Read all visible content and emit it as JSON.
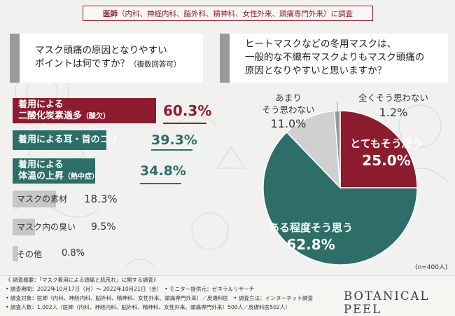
{
  "header": {
    "brand": "医師",
    "specialties": "（内科、神経内科、脳外科、精神科、女性外来、頭痛専門外来）",
    "suffix": "に調査"
  },
  "left_question": {
    "line1": "マスク頭痛の原因となりやすい",
    "line2": "ポイントは何ですか？",
    "note": "（複数回答可）"
  },
  "right_question": {
    "line1": "ヒートマスクなどの冬用マスクは、",
    "line2": "一般的な不織布マスクよりもマスク頭痛の",
    "line3": "原因となりやすいと思いますか？"
  },
  "chart_data": [
    {
      "type": "bar",
      "orientation": "horizontal",
      "categories": [
        "着用による二酸化炭素過多（酸欠）",
        "着用による耳・首のコリ",
        "着用による体温の上昇（熱中症）",
        "マスクの素材",
        "マスク内の臭い",
        "その他"
      ],
      "labels": [
        {
          "line1": "着用による",
          "line2": "二酸化炭素過多",
          "suffix": "（酸欠）"
        },
        {
          "line1": "着用による耳・首のコリ",
          "line2": "",
          "suffix": ""
        },
        {
          "line1": "着用による",
          "line2": "体温の上昇",
          "suffix": "（熱中症）"
        },
        {
          "line1": "マスクの素材",
          "line2": "",
          "suffix": ""
        },
        {
          "line1": "マスク内の臭い",
          "line2": "",
          "suffix": ""
        },
        {
          "line1": "その他",
          "line2": "",
          "suffix": ""
        }
      ],
      "values": [
        60.3,
        39.3,
        34.8,
        18.3,
        9.5,
        0.8
      ],
      "value_labels": [
        "60.3%",
        "39.3%",
        "34.8%",
        "18.3%",
        "9.5%",
        "0.8%"
      ],
      "colors": [
        "#8c1c2e",
        "#2d6f68",
        "#2d6f68",
        "#c7c7c7",
        "#c7c7c7",
        "#c7c7c7"
      ],
      "xlim": [
        0,
        100
      ]
    },
    {
      "type": "pie",
      "categories": [
        "とてもそう思う",
        "ある程度そう思う",
        "あまりそう思わない",
        "全くそう思わない"
      ],
      "values": [
        25.0,
        62.8,
        11.0,
        1.2
      ],
      "value_labels": [
        "25.0%",
        "62.8%",
        "11.0%",
        "1.2%"
      ],
      "label_lines": [
        [
          "とてもそう思う"
        ],
        [
          "ある程度そう思う"
        ],
        [
          "あまり",
          "そう思わない"
        ],
        [
          "全くそう思わない"
        ]
      ],
      "colors": [
        "#8c1c2e",
        "#2d6f68",
        "#d0d0d0",
        "#9a9a9a"
      ],
      "note": "(n=400人)"
    }
  ],
  "footer": {
    "line1": "《 調査概要：「マスク着用による頭痛と肌荒れ」に関する調査》",
    "line2": "• 調査期間：2022年10月17日（月）〜 2022年10月21日（金）　• モニター提供元：ゼネラルリサーチ",
    "line3": "• 調査対象：医師（内科、神経内科、脳外科、精神科、女性外来、頭痛専門外来）／皮膚科医　• 調査方法：インターネット調査",
    "line4": "• 調査人数：1,002人（医師（内科、神経内科、脳外科、精神科、女性外来、頭痛専門外来）500人／皮膚科医502人）",
    "logo": "BOTANICAL PEEL"
  }
}
